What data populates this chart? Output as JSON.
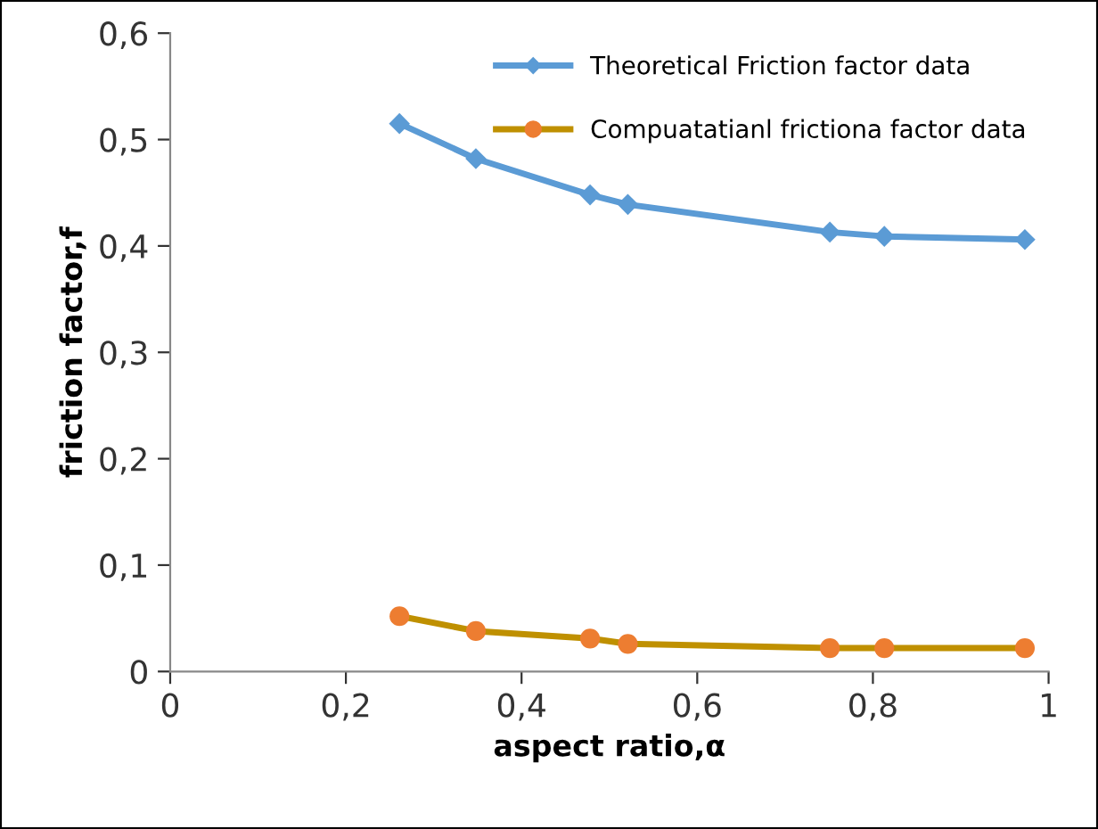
{
  "chart_data": {
    "type": "line",
    "xlabel": "aspect ratio,α",
    "ylabel": "friction factor,f",
    "xlim": [
      0,
      1
    ],
    "xticks": [
      0,
      {
        "value": 0.2,
        "label": "0,2"
      },
      {
        "value": 0.4,
        "label": "0,4"
      },
      {
        "value": 0.6,
        "label": "0,6"
      },
      {
        "value": 0.8,
        "label": "0,8"
      },
      1
    ],
    "ylim": [
      0,
      0.6
    ],
    "yticks": [
      0,
      {
        "value": 0.1,
        "label": "0,1"
      },
      {
        "value": 0.2,
        "label": "0,2"
      },
      {
        "value": 0.3,
        "label": "0,3"
      },
      {
        "value": 0.4,
        "label": "0,4"
      },
      {
        "value": 0.5,
        "label": "0,5"
      },
      {
        "value": 0.6,
        "label": "0,6"
      }
    ],
    "grid": false,
    "legend": "top right",
    "series": [
      {
        "name": "Theoretical Friction factor data",
        "color": "#5b9bd5",
        "marker": "diamond",
        "x": [
          0.261,
          0.348,
          0.478,
          0.521,
          0.751,
          0.813,
          0.973
        ],
        "values": [
          0.515,
          0.482,
          0.448,
          0.439,
          0.413,
          0.409,
          0.406
        ]
      },
      {
        "name": "Compuatatianl frictiona factor data",
        "color": "#bf9000",
        "colors": [
          "#ed7d31",
          "#ed7d31",
          "#ed7d31",
          "#ed7d31",
          "#ed7d31",
          "#ed7d31",
          "#ed7d31"
        ],
        "marker": "circle",
        "x": [
          0.261,
          0.348,
          0.478,
          0.521,
          0.751,
          0.813,
          0.973
        ],
        "values": [
          0.052,
          0.038,
          0.031,
          0.026,
          0.022,
          0.022,
          0.022
        ]
      }
    ]
  }
}
